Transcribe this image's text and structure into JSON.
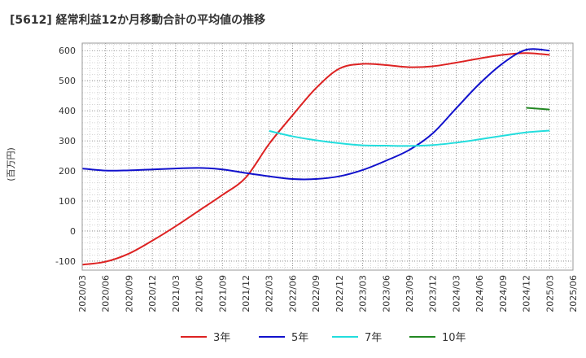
{
  "chart_data": {
    "type": "line",
    "title": "[5612]  経常利益12か月移動合計の平均値の推移",
    "ylabel": "(百万円)",
    "xlabel": "",
    "ylim": [
      -130,
      625
    ],
    "y_ticks": [
      -100,
      0,
      100,
      200,
      300,
      400,
      500,
      600
    ],
    "x_ticks": [
      "2020/03",
      "2020/06",
      "2020/09",
      "2020/12",
      "2021/03",
      "2021/06",
      "2021/09",
      "2021/12",
      "2022/03",
      "2022/06",
      "2022/09",
      "2022/12",
      "2023/03",
      "2023/06",
      "2023/09",
      "2023/12",
      "2024/03",
      "2024/06",
      "2024/09",
      "2024/12",
      "2025/03",
      "2025/06"
    ],
    "grid": true,
    "legend_position": "bottom",
    "series": [
      {
        "name": "3年",
        "color": "#dd2222",
        "x": [
          "2020/03",
          "2020/06",
          "2020/09",
          "2020/12",
          "2021/03",
          "2021/06",
          "2021/09",
          "2021/12",
          "2022/03",
          "2022/06",
          "2022/09",
          "2022/12",
          "2023/03",
          "2023/06",
          "2023/09",
          "2023/12",
          "2024/03",
          "2024/06",
          "2024/09",
          "2024/12",
          "2025/03"
        ],
        "values": [
          -112,
          -102,
          -75,
          -32,
          16,
          68,
          120,
          178,
          290,
          385,
          475,
          540,
          556,
          552,
          545,
          548,
          560,
          574,
          586,
          592,
          586
        ]
      },
      {
        "name": "5年",
        "color": "#1111cc",
        "x": [
          "2020/03",
          "2020/06",
          "2020/09",
          "2020/12",
          "2021/03",
          "2021/06",
          "2021/09",
          "2021/12",
          "2022/03",
          "2022/06",
          "2022/09",
          "2022/12",
          "2023/03",
          "2023/06",
          "2023/09",
          "2023/12",
          "2024/03",
          "2024/06",
          "2024/09",
          "2024/12",
          "2025/03"
        ],
        "values": [
          208,
          201,
          202,
          205,
          208,
          210,
          205,
          193,
          182,
          173,
          173,
          182,
          203,
          234,
          270,
          325,
          408,
          490,
          558,
          603,
          600
        ]
      },
      {
        "name": "7年",
        "color": "#22dddd",
        "x": [
          "2022/03",
          "2022/06",
          "2022/09",
          "2022/12",
          "2023/03",
          "2023/06",
          "2023/09",
          "2023/12",
          "2024/03",
          "2024/06",
          "2024/09",
          "2024/12",
          "2025/03"
        ],
        "values": [
          333,
          315,
          302,
          292,
          285,
          284,
          283,
          286,
          294,
          305,
          317,
          328,
          334
        ]
      },
      {
        "name": "10年",
        "color": "#228822",
        "x": [
          "2024/12",
          "2025/03"
        ],
        "values": [
          410,
          404
        ]
      }
    ]
  }
}
